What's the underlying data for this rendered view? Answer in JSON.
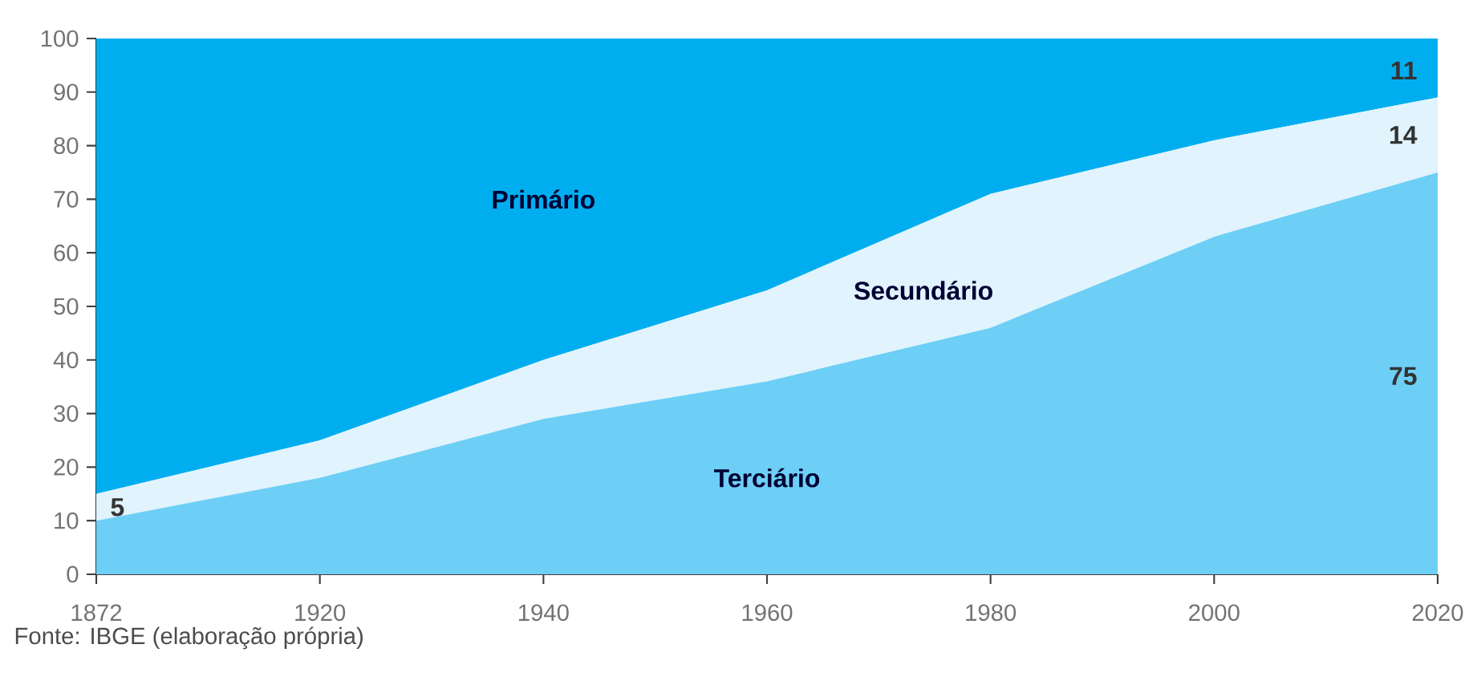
{
  "chart_data": {
    "type": "area",
    "stacked": true,
    "categories": [
      "1872",
      "1920",
      "1940",
      "1960",
      "1980",
      "2000",
      "2020"
    ],
    "series": [
      {
        "name": "Terciário",
        "color": "#6dcff6",
        "values": [
          10,
          18,
          29,
          36,
          46,
          63,
          75
        ]
      },
      {
        "name": "Secundário",
        "color": "#e1f3fc",
        "values": [
          5,
          7,
          11,
          17,
          25,
          18,
          14
        ]
      },
      {
        "name": "Primário",
        "color": "#00aeef",
        "values": [
          85,
          75,
          60,
          47,
          29,
          19,
          11
        ]
      }
    ],
    "ylim": [
      0,
      100
    ],
    "yticks": [
      0,
      10,
      20,
      30,
      40,
      50,
      60,
      70,
      80,
      90,
      100
    ],
    "annotations": [
      {
        "text": "5",
        "x": "1872",
        "y": 12.5
      },
      {
        "text": "11",
        "x": "2020",
        "y": 94
      },
      {
        "text": "14",
        "x": "2020",
        "y": 82
      },
      {
        "text": "75",
        "x": "2020",
        "y": 37
      },
      "Fonte: IBGE (elaboração própria)"
    ]
  }
}
